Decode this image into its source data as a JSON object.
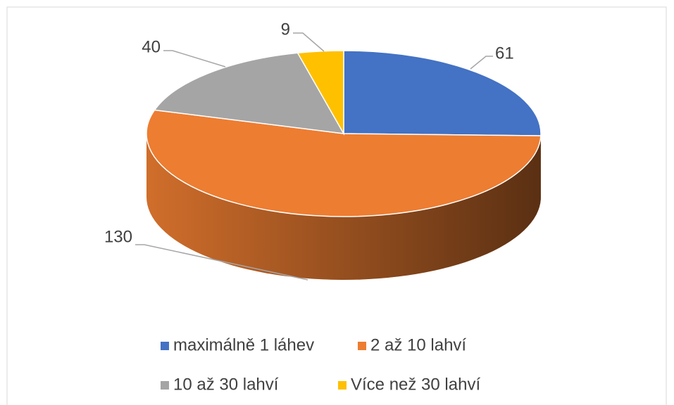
{
  "chart_data": {
    "type": "pie3d",
    "categories": [
      "maximálně 1 láhev",
      "2 až 10 lahví",
      "10 až 30 lahví",
      "Více než 30 lahví"
    ],
    "values": [
      61,
      130,
      40,
      9
    ],
    "colors": [
      "#4472c4",
      "#ed7d31",
      "#a5a5a5",
      "#ffc000"
    ]
  }
}
